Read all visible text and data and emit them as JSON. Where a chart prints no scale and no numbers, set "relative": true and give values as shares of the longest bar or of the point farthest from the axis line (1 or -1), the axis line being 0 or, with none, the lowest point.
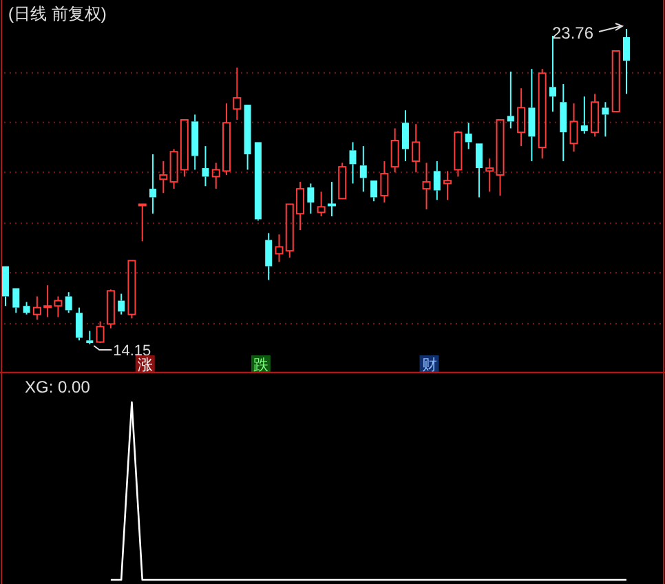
{
  "chart_data": [
    {
      "type": "candlestick",
      "title": "(日线 前复权)",
      "categories": [
        null,
        null,
        null,
        null,
        null,
        null,
        null,
        null,
        null,
        null,
        null,
        null,
        null,
        null,
        null,
        null,
        null,
        null,
        null,
        null,
        null,
        null,
        null,
        null,
        null,
        null,
        null,
        null,
        null,
        null,
        null,
        null,
        null,
        null,
        null,
        null,
        null,
        null,
        null,
        null,
        null,
        null,
        null,
        null,
        null,
        null,
        null,
        null,
        null,
        null,
        null,
        null,
        null,
        null,
        null,
        null,
        null,
        null,
        null,
        null
      ],
      "ohlc": [
        [
          16.53,
          16.53,
          15.32,
          15.61
        ],
        [
          15.86,
          15.86,
          15.11,
          15.27
        ],
        [
          15.32,
          15.44,
          15.06,
          15.11
        ],
        [
          15.06,
          15.61,
          14.9,
          15.27
        ],
        [
          15.32,
          15.95,
          14.98,
          15.32
        ],
        [
          15.32,
          15.61,
          14.98,
          15.48
        ],
        [
          15.61,
          15.74,
          15.11,
          15.19
        ],
        [
          15.11,
          15.27,
          14.27,
          14.35
        ],
        [
          14.27,
          14.56,
          14.15,
          14.19
        ],
        [
          14.22,
          14.85,
          14.19,
          14.69
        ],
        [
          14.77,
          15.82,
          14.64,
          15.78
        ],
        [
          15.48,
          15.69,
          15.06,
          15.15
        ],
        [
          15.06,
          16.7,
          14.94,
          16.7
        ],
        [
          18.42,
          18.42,
          17.29,
          18.42
        ],
        [
          18.89,
          19.94,
          18.13,
          18.63
        ],
        [
          19.18,
          19.73,
          18.76,
          19.31
        ],
        [
          19.1,
          20.1,
          18.89,
          20.02
        ],
        [
          19.47,
          20.99,
          19.26,
          20.99
        ],
        [
          20.94,
          21.15,
          19.47,
          19.89
        ],
        [
          19.52,
          20.19,
          18.97,
          19.26
        ],
        [
          19.26,
          19.68,
          18.89,
          19.47
        ],
        [
          19.43,
          21.49,
          19.31,
          20.9
        ],
        [
          21.32,
          22.58,
          20.99,
          21.66
        ],
        [
          21.45,
          21.45,
          19.47,
          19.94
        ],
        [
          20.31,
          20.31,
          17.92,
          17.96
        ],
        [
          17.33,
          17.54,
          16.11,
          16.53
        ],
        [
          16.91,
          17.5,
          16.66,
          17.12
        ],
        [
          17.0,
          18.42,
          16.79,
          18.42
        ],
        [
          18.13,
          19.1,
          17.63,
          18.89
        ],
        [
          18.93,
          19.05,
          18.13,
          18.47
        ],
        [
          18.17,
          18.8,
          18.05,
          18.34
        ],
        [
          18.42,
          19.1,
          18.05,
          18.42
        ],
        [
          18.59,
          19.68,
          18.59,
          19.56
        ],
        [
          20.06,
          20.31,
          19.05,
          19.64
        ],
        [
          19.6,
          20.19,
          18.8,
          19.22
        ],
        [
          19.14,
          19.14,
          18.51,
          18.63
        ],
        [
          18.68,
          19.73,
          18.47,
          19.35
        ],
        [
          19.56,
          20.73,
          19.39,
          20.36
        ],
        [
          20.9,
          21.28,
          19.73,
          20.1
        ],
        [
          19.73,
          20.86,
          19.39,
          20.31
        ],
        [
          18.89,
          19.68,
          18.26,
          19.1
        ],
        [
          19.43,
          19.73,
          18.55,
          18.84
        ],
        [
          19.05,
          19.43,
          18.55,
          19.14
        ],
        [
          19.47,
          20.65,
          19.26,
          20.61
        ],
        [
          20.57,
          20.9,
          20.1,
          20.31
        ],
        [
          20.27,
          20.27,
          18.63,
          19.52
        ],
        [
          19.43,
          19.81,
          18.8,
          19.52
        ],
        [
          19.31,
          20.99,
          18.68,
          20.99
        ],
        [
          21.11,
          22.46,
          20.73,
          20.94
        ],
        [
          20.61,
          21.95,
          20.19,
          21.36
        ],
        [
          21.36,
          22.54,
          19.73,
          20.48
        ],
        [
          20.15,
          22.54,
          19.81,
          22.41
        ],
        [
          21.99,
          23.55,
          21.24,
          21.7
        ],
        [
          21.53,
          22.08,
          19.73,
          20.61
        ],
        [
          20.27,
          21.49,
          20.02,
          20.94
        ],
        [
          20.82,
          21.7,
          20.57,
          20.65
        ],
        [
          20.61,
          21.78,
          20.48,
          21.53
        ],
        [
          21.36,
          21.53,
          20.48,
          21.15
        ],
        [
          21.24,
          23.09,
          21.24,
          23.09
        ],
        [
          23.51,
          23.76,
          21.78,
          22.79
        ]
      ],
      "colors": [
        "#54ffff",
        "#54ffff",
        "#54ffff",
        "#ff3c3c",
        "#ff3c3c",
        "#ff3c3c",
        "#54ffff",
        "#54ffff",
        "#54ffff",
        "#ff3c3c",
        "#ff3c3c",
        "#54ffff",
        "#ff3c3c",
        "#ff3c3c",
        "#54ffff",
        "#ff3c3c",
        "#ff3c3c",
        "#ff3c3c",
        "#54ffff",
        "#54ffff",
        "#ff3c3c",
        "#ff3c3c",
        "#ff3c3c",
        "#54ffff",
        "#54ffff",
        "#54ffff",
        "#ff3c3c",
        "#ff3c3c",
        "#ff3c3c",
        "#54ffff",
        "#ff3c3c",
        "#54ffff",
        "#ff3c3c",
        "#54ffff",
        "#54ffff",
        "#54ffff",
        "#ff3c3c",
        "#ff3c3c",
        "#54ffff",
        "#ff3c3c",
        "#ff3c3c",
        "#54ffff",
        "#ff3c3c",
        "#ff3c3c",
        "#54ffff",
        "#54ffff",
        "#ff3c3c",
        "#ff3c3c",
        "#54ffff",
        "#ff3c3c",
        "#54ffff",
        "#ff3c3c",
        "#54ffff",
        "#54ffff",
        "#ff3c3c",
        "#54ffff",
        "#ff3c3c",
        "#54ffff",
        "#ff3c3c",
        "#54ffff"
      ],
      "annotations": [
        "14.15",
        "23.76",
        "涨",
        "跌",
        "财"
      ],
      "yticks": [
        {
          "value": 14.78,
          "label": null
        },
        {
          "value": 16.33,
          "label": null
        },
        {
          "value": 17.84,
          "label": null
        },
        {
          "value": 19.39,
          "label": null
        },
        {
          "value": 20.91,
          "label": null
        },
        {
          "value": 22.42,
          "label": null
        }
      ],
      "grid": true
    },
    {
      "type": "line",
      "title": "XG: 0.00",
      "relative": true,
      "categories": [
        null,
        null,
        null,
        null,
        null,
        null,
        null,
        null,
        null,
        null,
        null,
        null,
        null,
        null,
        null,
        null,
        null,
        null,
        null,
        null,
        null,
        null,
        null,
        null,
        null,
        null,
        null,
        null,
        null,
        null,
        null,
        null,
        null,
        null,
        null,
        null,
        null,
        null,
        null,
        null,
        null,
        null,
        null,
        null,
        null,
        null,
        null,
        null,
        null,
        null,
        null,
        null,
        null,
        null,
        null,
        null,
        null,
        null,
        null,
        null
      ],
      "series": [
        {
          "color": "#ffffff",
          "values": [
            null,
            null,
            null,
            null,
            null,
            null,
            null,
            null,
            null,
            null,
            0,
            0,
            1,
            0,
            0,
            0,
            0,
            0,
            0,
            0,
            0,
            0,
            0,
            0,
            0,
            0,
            0,
            0,
            0,
            0,
            0,
            0,
            0,
            0,
            0,
            0,
            0,
            0,
            0,
            0,
            0,
            0,
            0,
            0,
            0,
            0,
            0,
            0,
            0,
            0,
            0,
            0,
            0,
            0,
            0,
            0,
            0,
            0,
            0,
            0
          ]
        }
      ]
    }
  ]
}
